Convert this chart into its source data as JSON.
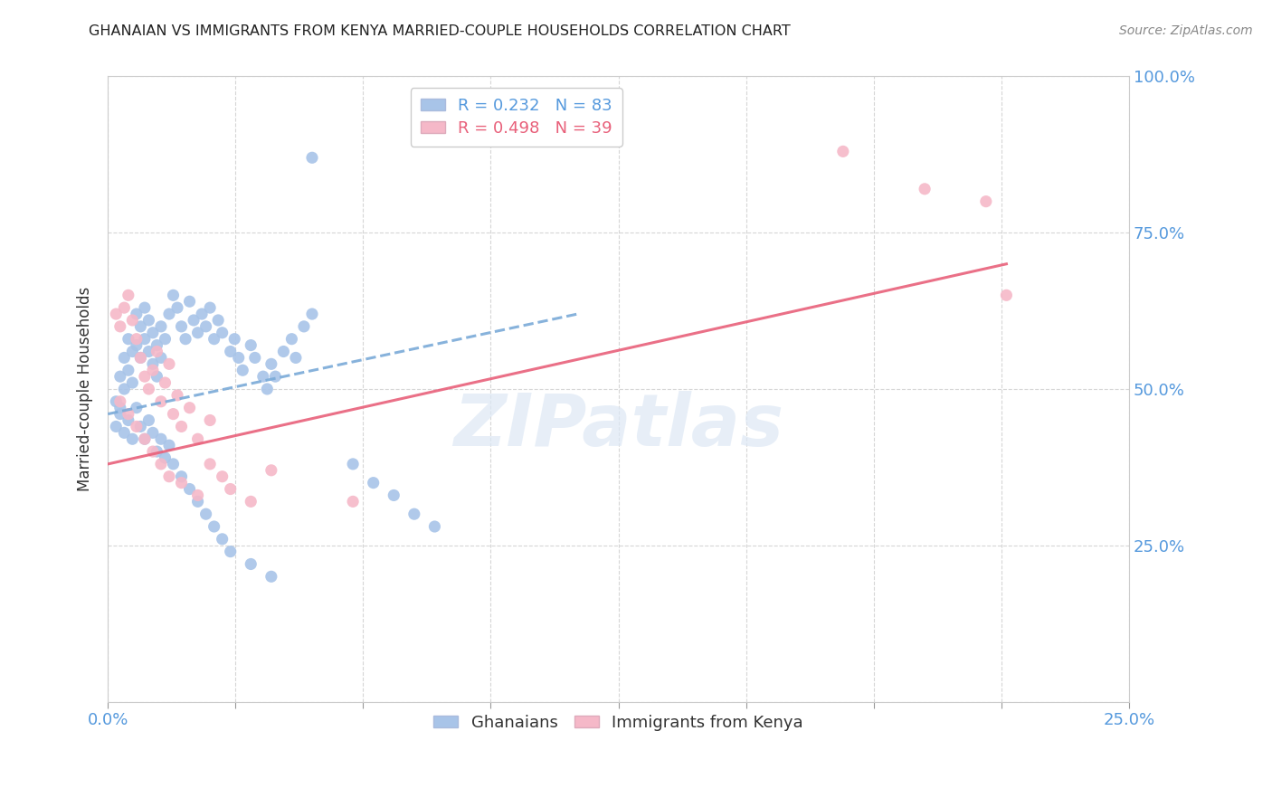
{
  "title": "GHANAIAN VS IMMIGRANTS FROM KENYA MARRIED-COUPLE HOUSEHOLDS CORRELATION CHART",
  "source": "Source: ZipAtlas.com",
  "ylabel": "Married-couple Households",
  "xlim": [
    0.0,
    0.25
  ],
  "ylim": [
    0.0,
    1.0
  ],
  "y_tick_positions": [
    0.25,
    0.5,
    0.75,
    1.0
  ],
  "y_tick_labels": [
    "25.0%",
    "50.0%",
    "75.0%",
    "100.0%"
  ],
  "ghanaian_dot_color": "#a8c4e8",
  "kenya_dot_color": "#f5b8c8",
  "ghanaian_line_color": "#7aaad8",
  "kenya_line_color": "#e8607a",
  "R_ghanaian": 0.232,
  "N_ghanaian": 83,
  "R_kenya": 0.498,
  "N_kenya": 39,
  "background_color": "#ffffff",
  "grid_color": "#cccccc",
  "tick_label_color": "#5599dd",
  "title_color": "#222222",
  "watermark_color": "#dde8f5",
  "legend_label_color_1": "#5599dd",
  "legend_label_color_2": "#e8607a",
  "ghanaian_x": [
    0.002,
    0.003,
    0.003,
    0.004,
    0.004,
    0.005,
    0.005,
    0.006,
    0.006,
    0.007,
    0.007,
    0.008,
    0.008,
    0.009,
    0.009,
    0.01,
    0.01,
    0.011,
    0.011,
    0.012,
    0.012,
    0.013,
    0.013,
    0.014,
    0.015,
    0.016,
    0.017,
    0.018,
    0.019,
    0.02,
    0.021,
    0.022,
    0.023,
    0.024,
    0.025,
    0.026,
    0.027,
    0.028,
    0.03,
    0.031,
    0.032,
    0.033,
    0.035,
    0.036,
    0.038,
    0.039,
    0.04,
    0.041,
    0.043,
    0.045,
    0.046,
    0.048,
    0.05,
    0.002,
    0.003,
    0.004,
    0.005,
    0.006,
    0.007,
    0.008,
    0.009,
    0.01,
    0.011,
    0.012,
    0.013,
    0.014,
    0.015,
    0.016,
    0.018,
    0.02,
    0.022,
    0.024,
    0.026,
    0.028,
    0.03,
    0.035,
    0.04,
    0.06,
    0.065,
    0.07,
    0.075,
    0.08,
    0.05
  ],
  "ghanaian_y": [
    0.48,
    0.52,
    0.47,
    0.55,
    0.5,
    0.58,
    0.53,
    0.56,
    0.51,
    0.62,
    0.57,
    0.6,
    0.55,
    0.63,
    0.58,
    0.61,
    0.56,
    0.59,
    0.54,
    0.57,
    0.52,
    0.6,
    0.55,
    0.58,
    0.62,
    0.65,
    0.63,
    0.6,
    0.58,
    0.64,
    0.61,
    0.59,
    0.62,
    0.6,
    0.63,
    0.58,
    0.61,
    0.59,
    0.56,
    0.58,
    0.55,
    0.53,
    0.57,
    0.55,
    0.52,
    0.5,
    0.54,
    0.52,
    0.56,
    0.58,
    0.55,
    0.6,
    0.62,
    0.44,
    0.46,
    0.43,
    0.45,
    0.42,
    0.47,
    0.44,
    0.42,
    0.45,
    0.43,
    0.4,
    0.42,
    0.39,
    0.41,
    0.38,
    0.36,
    0.34,
    0.32,
    0.3,
    0.28,
    0.26,
    0.24,
    0.22,
    0.2,
    0.38,
    0.35,
    0.33,
    0.3,
    0.28,
    0.87
  ],
  "kenya_x": [
    0.002,
    0.003,
    0.004,
    0.005,
    0.006,
    0.007,
    0.008,
    0.009,
    0.01,
    0.011,
    0.012,
    0.013,
    0.014,
    0.015,
    0.016,
    0.017,
    0.018,
    0.02,
    0.022,
    0.025,
    0.003,
    0.005,
    0.007,
    0.009,
    0.011,
    0.013,
    0.015,
    0.018,
    0.022,
    0.025,
    0.028,
    0.03,
    0.035,
    0.04,
    0.06,
    0.18,
    0.2,
    0.215,
    0.22
  ],
  "kenya_y": [
    0.62,
    0.6,
    0.63,
    0.65,
    0.61,
    0.58,
    0.55,
    0.52,
    0.5,
    0.53,
    0.56,
    0.48,
    0.51,
    0.54,
    0.46,
    0.49,
    0.44,
    0.47,
    0.42,
    0.45,
    0.48,
    0.46,
    0.44,
    0.42,
    0.4,
    0.38,
    0.36,
    0.35,
    0.33,
    0.38,
    0.36,
    0.34,
    0.32,
    0.37,
    0.32,
    0.88,
    0.82,
    0.8,
    0.65
  ],
  "ghanaian_line_x": [
    0.0,
    0.115
  ],
  "ghanaian_line_y": [
    0.46,
    0.62
  ],
  "kenya_line_x": [
    0.0,
    0.22
  ],
  "kenya_line_y": [
    0.38,
    0.7
  ]
}
